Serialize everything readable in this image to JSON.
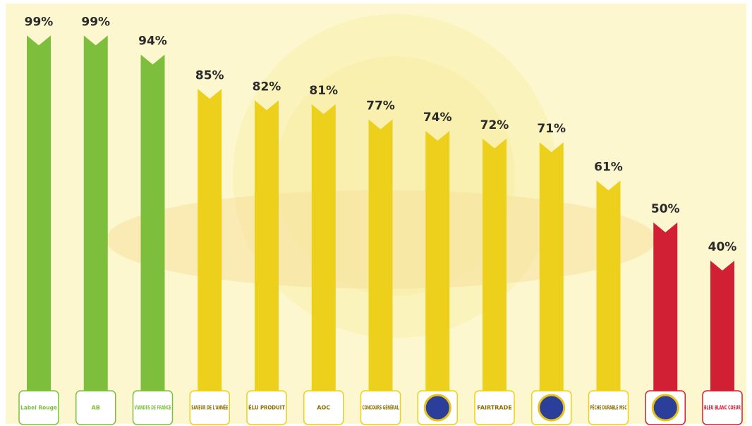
{
  "chart_data": {
    "type": "bar",
    "categories": [
      "Label Rouge",
      "AB",
      "VIANDES DE FRANCE",
      "SAVEUR DE L'ANNÉE",
      "ÉLU PRODUIT",
      "AOC",
      "CONCOURS GÉNÉRAL",
      null,
      "FAIRTRADE",
      null,
      "PÊCHE DURABLE MSC",
      null,
      "BLEU BLANC COEUR"
    ],
    "values": [
      99,
      99,
      94,
      85,
      82,
      81,
      77,
      74,
      72,
      71,
      61,
      50,
      40
    ],
    "value_labels": [
      "99%",
      "99%",
      "94%",
      "85%",
      "82%",
      "81%",
      "77%",
      "74%",
      "72%",
      "71%",
      "61%",
      "50%",
      "40%"
    ],
    "colors": [
      "#7dbf3c",
      "#7dbf3c",
      "#7dbf3c",
      "#ecd01c",
      "#ecd01c",
      "#ecd01c",
      "#ecd01c",
      "#ecd01c",
      "#ecd01c",
      "#ecd01c",
      "#ecd01c",
      "#d11f33",
      "#d11f33"
    ]
  }
}
